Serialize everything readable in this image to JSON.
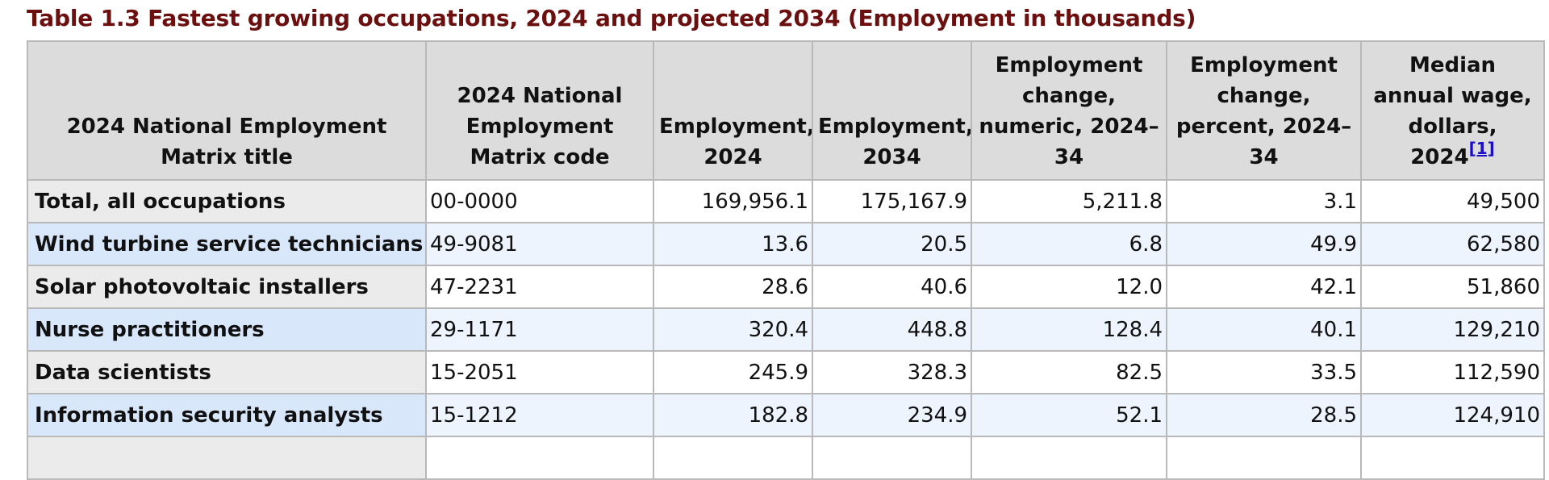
{
  "caption": "Table 1.3 Fastest growing occupations, 2024 and projected 2034 (Employment in thousands)",
  "colors": {
    "caption": "#6b0f0f",
    "header_bg": "#dcdcdc",
    "highlight_title_bg": "#d9e7fb",
    "highlight_cell_bg": "#eef4fd",
    "link": "#1a0dcc"
  },
  "headers": {
    "title": "2024 National Employment Matrix title",
    "code": "2024 National Employment Matrix code",
    "emp2024": "Employment, 2024",
    "emp2034": "Employment, 2034",
    "change_num": "Employment change, numeric, 2024–34",
    "change_pct": "Employment change, percent, 2024–34",
    "wage": "Median annual wage, dollars, 2024",
    "wage_footnote": "[1]"
  },
  "rows": [
    {
      "title": "Total, all occupations",
      "code": "00-0000",
      "emp2024": "169,956.1",
      "emp2034": "175,167.9",
      "change_num": "5,211.8",
      "change_pct": "3.1",
      "wage": "49,500"
    },
    {
      "title": "Wind turbine service technicians",
      "code": "49-9081",
      "emp2024": "13.6",
      "emp2034": "20.5",
      "change_num": "6.8",
      "change_pct": "49.9",
      "wage": "62,580"
    },
    {
      "title": "Solar photovoltaic installers",
      "code": "47-2231",
      "emp2024": "28.6",
      "emp2034": "40.6",
      "change_num": "12.0",
      "change_pct": "42.1",
      "wage": "51,860"
    },
    {
      "title": "Nurse practitioners",
      "code": "29-1171",
      "emp2024": "320.4",
      "emp2034": "448.8",
      "change_num": "128.4",
      "change_pct": "40.1",
      "wage": "129,210"
    },
    {
      "title": "Data scientists",
      "code": "15-2051",
      "emp2024": "245.9",
      "emp2034": "328.3",
      "change_num": "82.5",
      "change_pct": "33.5",
      "wage": "112,590"
    },
    {
      "title": "Information security analysts",
      "code": "15-1212",
      "emp2024": "182.8",
      "emp2034": "234.9",
      "change_num": "52.1",
      "change_pct": "28.5",
      "wage": "124,910"
    }
  ]
}
